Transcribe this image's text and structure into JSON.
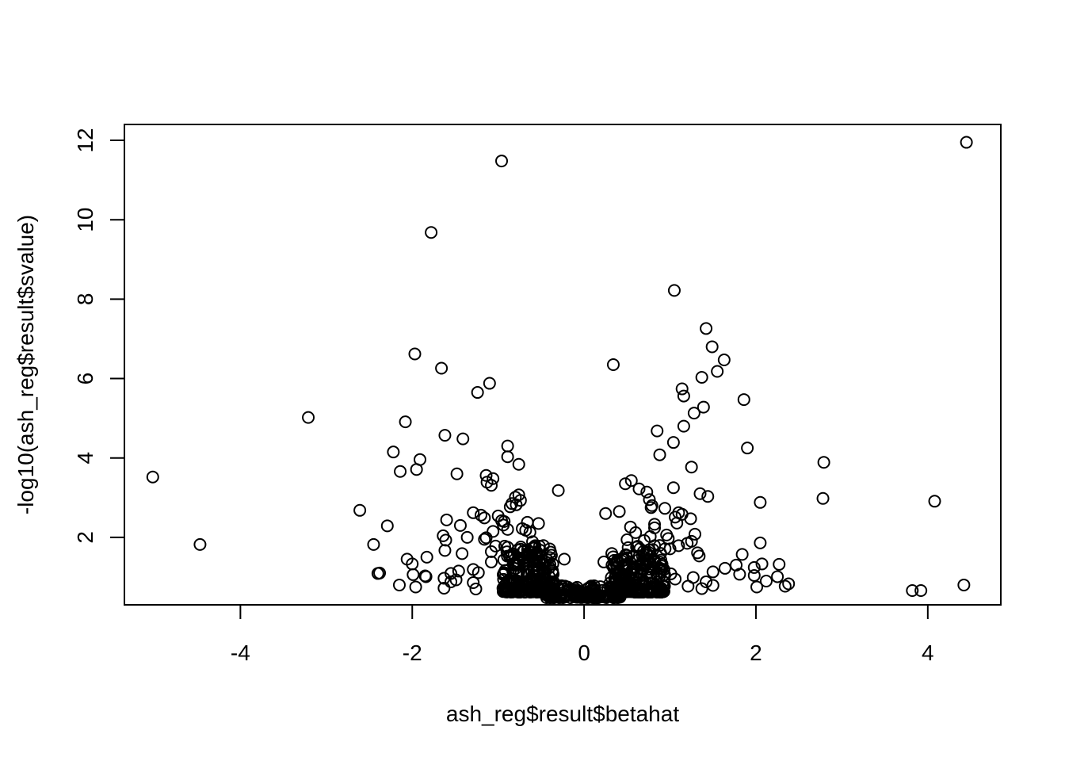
{
  "chart_data": {
    "type": "scatter",
    "title": "",
    "xlabel": "ash_reg$result$betahat",
    "ylabel": "-log10(ash_reg$result$svalue)",
    "xlim": [
      -5.35,
      4.85
    ],
    "ylim": [
      0.3,
      12.4
    ],
    "xticks": [
      -4,
      -2,
      0,
      2,
      4
    ],
    "yticks": [
      2,
      4,
      6,
      8,
      10,
      12
    ],
    "grid": false,
    "legend": "none",
    "point_style": "open-circle",
    "colors": {
      "points": "#000000",
      "axes": "#000000",
      "background": "#ffffff"
    },
    "points": [
      [
        4.45,
        11.95
      ],
      [
        -0.96,
        11.48
      ],
      [
        -1.78,
        9.68
      ],
      [
        1.05,
        8.22
      ],
      [
        1.42,
        7.26
      ],
      [
        1.49,
        6.8
      ],
      [
        -1.97,
        6.62
      ],
      [
        1.63,
        6.47
      ],
      [
        0.34,
        6.35
      ],
      [
        -1.66,
        6.26
      ],
      [
        1.55,
        6.18
      ],
      [
        1.37,
        6.03
      ],
      [
        -1.1,
        5.88
      ],
      [
        1.14,
        5.74
      ],
      [
        -1.24,
        5.65
      ],
      [
        1.16,
        5.56
      ],
      [
        1.86,
        5.47
      ],
      [
        1.39,
        5.28
      ],
      [
        1.28,
        5.13
      ],
      [
        -3.21,
        5.02
      ],
      [
        -2.08,
        4.91
      ],
      [
        1.16,
        4.8
      ],
      [
        0.85,
        4.68
      ],
      [
        -1.62,
        4.57
      ],
      [
        -1.41,
        4.48
      ],
      [
        1.04,
        4.39
      ],
      [
        -0.89,
        4.3
      ],
      [
        1.9,
        4.25
      ],
      [
        -2.22,
        4.15
      ],
      [
        0.88,
        4.08
      ],
      [
        -0.89,
        4.03
      ],
      [
        -1.91,
        3.96
      ],
      [
        2.79,
        3.89
      ],
      [
        -0.76,
        3.84
      ],
      [
        1.25,
        3.77
      ],
      [
        -1.95,
        3.71
      ],
      [
        -2.14,
        3.66
      ],
      [
        -1.48,
        3.6
      ],
      [
        -1.14,
        3.56
      ],
      [
        -5.02,
        3.52
      ],
      [
        -1.06,
        3.48
      ],
      [
        0.55,
        3.43
      ],
      [
        -1.13,
        3.39
      ],
      [
        0.48,
        3.35
      ],
      [
        -1.08,
        3.31
      ],
      [
        1.04,
        3.25
      ],
      [
        0.64,
        3.22
      ],
      [
        -0.3,
        3.18
      ],
      [
        0.73,
        3.14
      ],
      [
        1.35,
        3.1
      ],
      [
        -0.76,
        3.07
      ],
      [
        1.44,
        3.03
      ],
      [
        -0.8,
        3.01
      ],
      [
        2.78,
        2.98
      ],
      [
        0.76,
        2.95
      ],
      [
        -0.74,
        2.93
      ],
      [
        4.08,
        2.91
      ],
      [
        2.05,
        2.88
      ],
      [
        -0.84,
        2.85
      ],
      [
        -0.79,
        2.82
      ],
      [
        0.79,
        2.8
      ],
      [
        -0.86,
        2.77
      ],
      [
        0.78,
        2.75
      ],
      [
        0.94,
        2.73
      ],
      [
        -2.61,
        2.68
      ],
      [
        0.41,
        2.65
      ],
      [
        1.1,
        2.62
      ],
      [
        -1.29,
        2.62
      ],
      [
        0.25,
        2.6
      ],
      [
        1.14,
        2.58
      ],
      [
        -1.2,
        2.56
      ],
      [
        -1.0,
        2.54
      ],
      [
        1.06,
        2.51
      ],
      [
        -1.16,
        2.49
      ],
      [
        1.24,
        2.47
      ],
      [
        -1.6,
        2.44
      ],
      [
        -0.96,
        2.42
      ],
      [
        -0.93,
        2.4
      ],
      [
        -0.66,
        2.38
      ],
      [
        1.08,
        2.36
      ],
      [
        -0.53,
        2.35
      ],
      [
        0.82,
        2.33
      ],
      [
        -0.94,
        2.31
      ],
      [
        -1.44,
        2.3
      ],
      [
        -2.29,
        2.29
      ],
      [
        0.54,
        2.26
      ],
      [
        0.82,
        2.24
      ],
      [
        -0.72,
        2.22
      ],
      [
        -0.89,
        2.2
      ],
      [
        -0.68,
        2.18
      ],
      [
        -1.06,
        2.15
      ],
      [
        -0.63,
        2.13
      ],
      [
        0.6,
        2.12
      ],
      [
        1.29,
        2.08
      ],
      [
        0.96,
        2.06
      ],
      [
        -1.64,
        2.04
      ],
      [
        0.77,
        2.02
      ],
      [
        -1.36,
        2.0
      ],
      [
        -1.14,
        1.99
      ],
      [
        0.98,
        1.97
      ],
      [
        -1.16,
        1.95
      ],
      [
        0.5,
        1.94
      ],
      [
        -1.61,
        1.93
      ],
      [
        0.7,
        1.92
      ],
      [
        1.25,
        1.9
      ],
      [
        -0.6,
        1.89
      ],
      [
        2.05,
        1.86
      ],
      [
        1.2,
        1.85
      ],
      [
        -2.45,
        1.82
      ],
      [
        -4.47,
        1.82
      ],
      [
        0.82,
        1.79
      ],
      [
        1.1,
        1.79
      ],
      [
        -1.03,
        1.78
      ],
      [
        0.61,
        1.75
      ],
      [
        -0.58,
        1.73
      ],
      [
        1.0,
        1.71
      ],
      [
        -1.62,
        1.67
      ],
      [
        -1.08,
        1.64
      ],
      [
        0.72,
        1.62
      ],
      [
        1.32,
        1.61
      ],
      [
        -1.42,
        1.59
      ],
      [
        1.84,
        1.57
      ],
      [
        -0.38,
        1.55
      ],
      [
        1.34,
        1.53
      ],
      [
        -1.83,
        1.5
      ],
      [
        0.5,
        1.49
      ],
      [
        -2.06,
        1.45
      ],
      [
        -0.23,
        1.45
      ],
      [
        0.35,
        1.42
      ],
      [
        0.44,
        1.4
      ],
      [
        -1.08,
        1.38
      ],
      [
        0.23,
        1.38
      ],
      [
        -2.0,
        1.33
      ],
      [
        2.07,
        1.33
      ],
      [
        2.27,
        1.32
      ],
      [
        -0.7,
        1.3
      ],
      [
        1.77,
        1.3
      ],
      [
        -0.55,
        1.28
      ],
      [
        1.98,
        1.24
      ],
      [
        1.64,
        1.22
      ],
      [
        0.81,
        1.21
      ],
      [
        -1.29,
        1.19
      ],
      [
        -1.46,
        1.15
      ],
      [
        1.5,
        1.13
      ],
      [
        -1.23,
        1.11
      ],
      [
        -2.38,
        1.1
      ],
      [
        -2.4,
        1.09
      ],
      [
        -1.55,
        1.09
      ],
      [
        1.01,
        1.08
      ],
      [
        1.81,
        1.07
      ],
      [
        -1.99,
        1.06
      ],
      [
        1.98,
        1.04
      ],
      [
        -1.85,
        1.03
      ],
      [
        -1.84,
        1.01
      ],
      [
        2.25,
        1.01
      ],
      [
        1.27,
        0.99
      ],
      [
        0.4,
        0.98
      ],
      [
        -1.63,
        0.97
      ],
      [
        1.06,
        0.95
      ],
      [
        -1.49,
        0.93
      ],
      [
        2.12,
        0.9
      ],
      [
        1.42,
        0.88
      ],
      [
        -1.55,
        0.88
      ],
      [
        -1.29,
        0.86
      ],
      [
        2.38,
        0.83
      ],
      [
        -0.85,
        0.83
      ],
      [
        4.42,
        0.8
      ],
      [
        -2.15,
        0.8
      ],
      [
        1.5,
        0.79
      ],
      [
        1.21,
        0.77
      ],
      [
        2.34,
        0.77
      ],
      [
        -0.48,
        0.76
      ],
      [
        2.01,
        0.75
      ],
      [
        -1.96,
        0.75
      ],
      [
        -1.63,
        0.72
      ],
      [
        1.37,
        0.71
      ],
      [
        -1.26,
        0.7
      ],
      [
        0.11,
        0.7
      ],
      [
        3.82,
        0.66
      ],
      [
        3.92,
        0.66
      ],
      [
        -0.2,
        0.64
      ],
      [
        0.93,
        0.64
      ]
    ],
    "dense_clusters": [
      {
        "x_range": [
          -0.95,
          -0.35
        ],
        "y_range": [
          0.62,
          1.8
        ],
        "count": 220
      },
      {
        "x_range": [
          0.3,
          0.95
        ],
        "y_range": [
          0.62,
          1.8
        ],
        "count": 220
      },
      {
        "x_range": [
          -0.45,
          0.45
        ],
        "y_range": [
          0.48,
          0.8
        ],
        "count": 160
      }
    ]
  }
}
